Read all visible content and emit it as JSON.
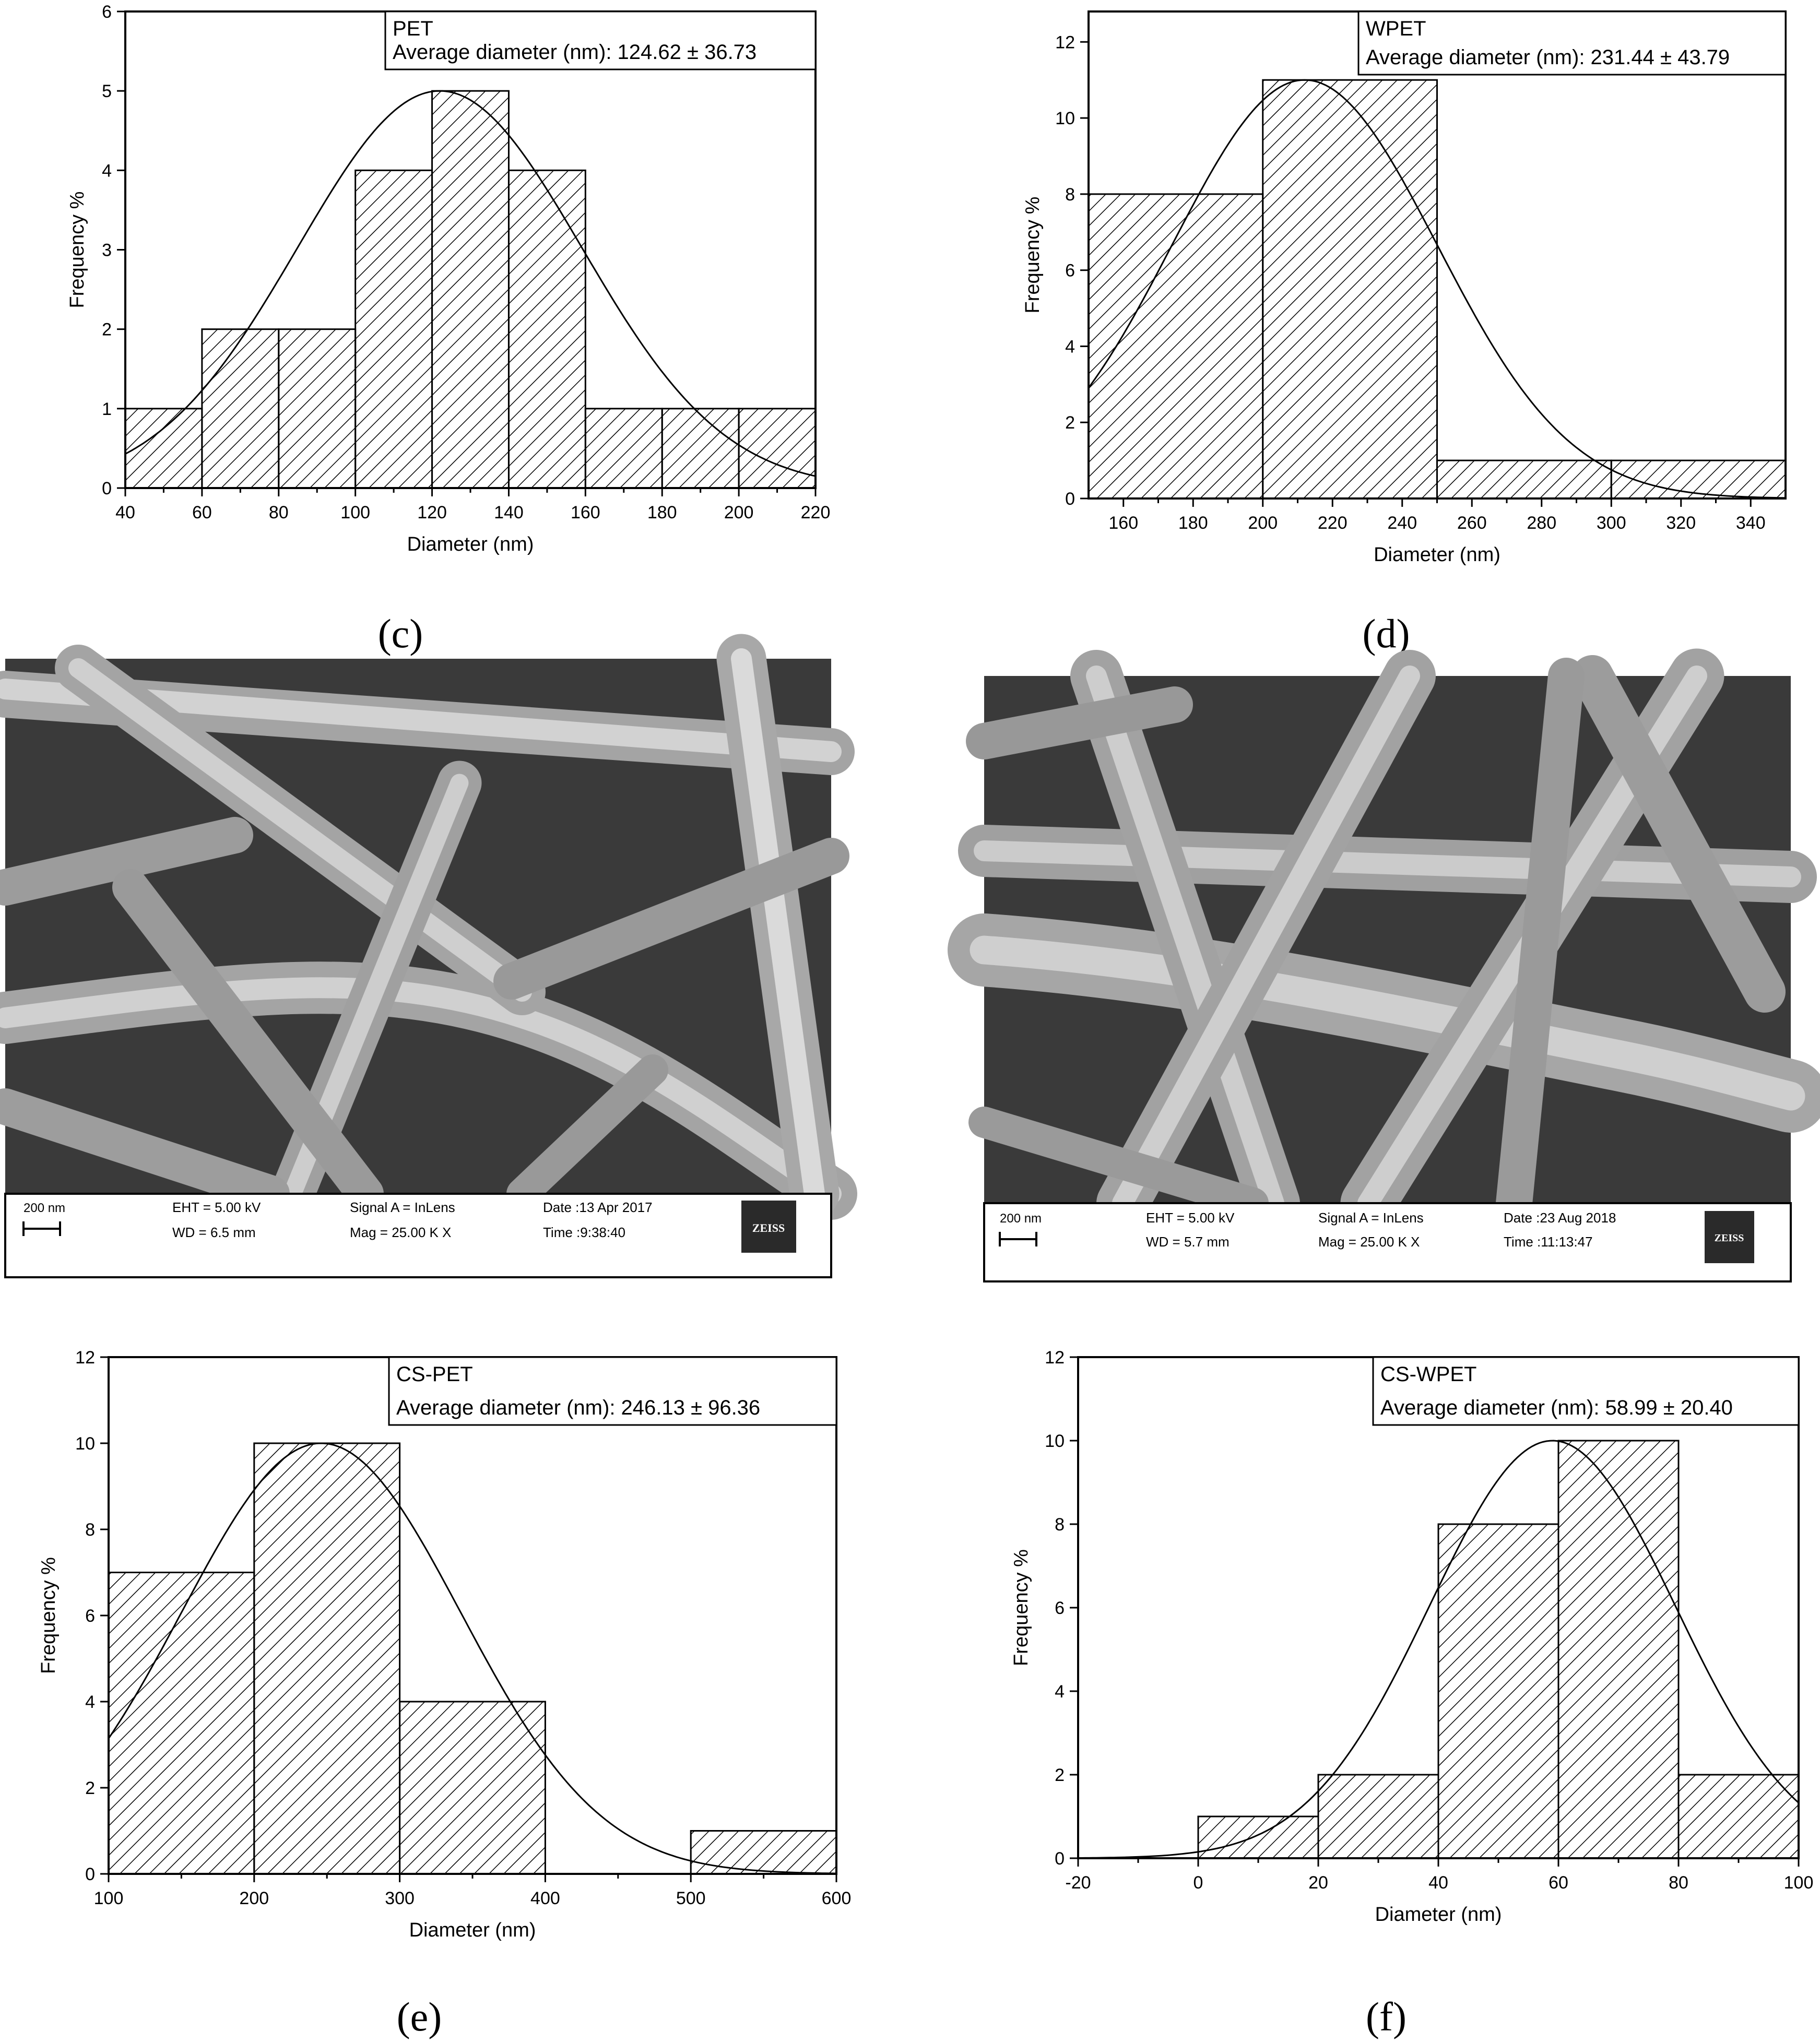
{
  "panels": [
    {
      "id": "c",
      "label": "(c)",
      "label_letter": "c",
      "chart_data": {
        "type": "bar",
        "title": "PET",
        "legend_text": "Average diameter (nm):  124.62 ± 36.73",
        "xlabel": "Diameter (nm)",
        "ylabel": "Frequency %",
        "xlim": [
          40,
          220
        ],
        "ylim": [
          0,
          6
        ],
        "xticks": [
          40,
          60,
          80,
          100,
          120,
          140,
          160,
          180,
          200,
          220
        ],
        "yticks": [
          0,
          1,
          2,
          3,
          4,
          5,
          6
        ],
        "bins": [
          {
            "x0": 40,
            "x1": 60,
            "value": 1
          },
          {
            "x0": 60,
            "x1": 80,
            "value": 2
          },
          {
            "x0": 80,
            "x1": 100,
            "value": 2
          },
          {
            "x0": 100,
            "x1": 120,
            "value": 4
          },
          {
            "x0": 120,
            "x1": 140,
            "value": 5
          },
          {
            "x0": 140,
            "x1": 160,
            "value": 4
          },
          {
            "x0": 160,
            "x1": 180,
            "value": 1
          },
          {
            "x0": 180,
            "x1": 200,
            "value": 1
          },
          {
            "x0": 200,
            "x1": 220,
            "value": 1
          }
        ],
        "fit": {
          "type": "normal",
          "mean": 122,
          "sd": 37,
          "peak": 5
        }
      }
    },
    {
      "id": "d",
      "label": "(d)",
      "label_letter": "d",
      "chart_data": {
        "type": "bar",
        "title": "WPET",
        "legend_text": "Average diameter (nm): 231.44 ± 43.79",
        "xlabel": "Diameter (nm)",
        "ylabel": "Frequency %",
        "xlim": [
          150,
          350
        ],
        "ylim": [
          0,
          12.8
        ],
        "xticks": [
          160,
          180,
          200,
          220,
          240,
          260,
          280,
          300,
          320,
          340
        ],
        "yticks": [
          0,
          2,
          4,
          6,
          8,
          10,
          12
        ],
        "bins": [
          {
            "x0": 150,
            "x1": 200,
            "value": 8
          },
          {
            "x0": 200,
            "x1": 250,
            "value": 11
          },
          {
            "x0": 250,
            "x1": 300,
            "value": 1
          },
          {
            "x0": 300,
            "x1": 350,
            "value": 1
          }
        ],
        "fit": {
          "type": "normal",
          "mean": 212,
          "sd": 38,
          "peak": 11
        }
      }
    },
    {
      "id": "e",
      "label": "(e)",
      "label_letter": "e",
      "chart_data": {
        "type": "bar",
        "title": "CS-PET",
        "legend_text": "Average diameter (nm): 246.13 ± 96.36",
        "xlabel": "Diameter (nm)",
        "ylabel": "Frequency %",
        "xlim": [
          100,
          600
        ],
        "ylim": [
          0,
          12
        ],
        "xticks": [
          100,
          200,
          300,
          400,
          500,
          600
        ],
        "yticks": [
          0,
          2,
          4,
          6,
          8,
          10,
          12
        ],
        "bins": [
          {
            "x0": 100,
            "x1": 200,
            "value": 7
          },
          {
            "x0": 200,
            "x1": 300,
            "value": 10
          },
          {
            "x0": 300,
            "x1": 400,
            "value": 4
          },
          {
            "x0": 400,
            "x1": 500,
            "value": 0
          },
          {
            "x0": 500,
            "x1": 600,
            "value": 1
          }
        ],
        "fit": {
          "type": "normal",
          "mean": 246,
          "sd": 96,
          "peak": 10
        }
      }
    },
    {
      "id": "f",
      "label": "(f)",
      "label_letter": "f",
      "chart_data": {
        "type": "bar",
        "title": "CS-WPET",
        "legend_text": "Average diameter (nm): 58.99 ± 20.40",
        "xlabel": "Diameter (nm)",
        "ylabel": "Frequency %",
        "xlim": [
          -20,
          100
        ],
        "ylim": [
          0,
          12
        ],
        "xticks": [
          -20,
          0,
          20,
          40,
          60,
          80,
          100
        ],
        "yticks": [
          0,
          2,
          4,
          6,
          8,
          10,
          12
        ],
        "bins": [
          {
            "x0": 0,
            "x1": 20,
            "value": 1
          },
          {
            "x0": 20,
            "x1": 40,
            "value": 2
          },
          {
            "x0": 40,
            "x1": 60,
            "value": 8
          },
          {
            "x0": 60,
            "x1": 80,
            "value": 10
          },
          {
            "x0": 80,
            "x1": 100,
            "value": 2
          }
        ],
        "fit": {
          "type": "normal",
          "mean": 59,
          "sd": 20.4,
          "peak": 10
        }
      }
    }
  ],
  "sem_images": [
    {
      "id": "sem-left",
      "scale_bar": "200 nm",
      "eht": "EHT =  5.00 kV",
      "wd": "WD =  6.5 mm",
      "signal": "Signal A = InLens",
      "mag": "Mag =  25.00 K X",
      "date": "Date :13 Apr 2017",
      "time": "Time :9:38:40",
      "logo": "ZEISS"
    },
    {
      "id": "sem-right",
      "scale_bar": "200 nm",
      "eht": "EHT =  5.00 kV",
      "wd": "WD =  5.7 mm",
      "signal": "Signal A = InLens",
      "mag": "Mag =  25.00 K X",
      "date": "Date :23 Aug 2018",
      "time": "Time :11:13:47",
      "logo": "ZEISS"
    }
  ],
  "colors": {
    "ink": "#000000",
    "paper": "#ffffff",
    "sem_background": "#3a3a3a",
    "sem_fiber": "#a9a9a9",
    "sem_fiber_highlight": "#d6d6d6"
  }
}
